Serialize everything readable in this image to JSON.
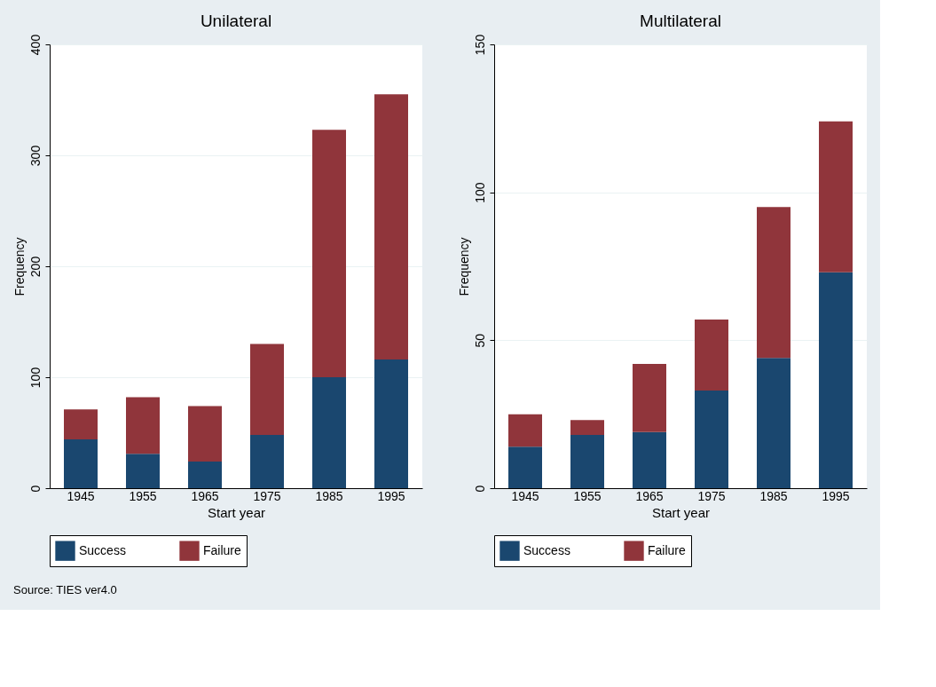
{
  "chart_data": [
    {
      "type": "bar",
      "stacked": true,
      "title": "Unilateral",
      "xlabel": "Start year",
      "ylabel": "Frequency",
      "categories": [
        "1945",
        "1955",
        "1965",
        "1975",
        "1985",
        "1995"
      ],
      "series": [
        {
          "name": "Success",
          "color": "#1a476f",
          "values": [
            44,
            31,
            24,
            48,
            100,
            116
          ]
        },
        {
          "name": "Failure",
          "color": "#90353b",
          "values": [
            27,
            51,
            50,
            82,
            223,
            239
          ]
        }
      ],
      "ylim": [
        0,
        400
      ],
      "yticks": [
        0,
        100,
        200,
        300,
        400
      ],
      "grid": "y",
      "legend": "bottom"
    },
    {
      "type": "bar",
      "stacked": true,
      "title": "Multilateral",
      "xlabel": "Start year",
      "ylabel": "Frequency",
      "categories": [
        "1945",
        "1955",
        "1965",
        "1975",
        "1985",
        "1995"
      ],
      "series": [
        {
          "name": "Success",
          "color": "#1a476f",
          "values": [
            14,
            18,
            19,
            33,
            44,
            73
          ]
        },
        {
          "name": "Failure",
          "color": "#90353b",
          "values": [
            11,
            5,
            23,
            24,
            51,
            51
          ]
        }
      ],
      "ylim": [
        0,
        150
      ],
      "yticks": [
        0,
        50,
        100,
        150
      ],
      "grid": "y",
      "legend": "bottom",
      "annotations": [
        "Source: TIES ver4.0"
      ]
    }
  ]
}
